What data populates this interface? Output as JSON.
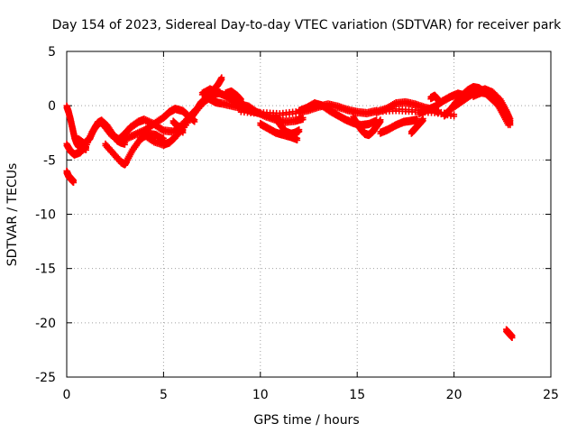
{
  "chart_data": {
    "type": "scatter",
    "title": "Day 154 of 2023, Sidereal Day-to-day VTEC variation (SDTVAR) for receiver park",
    "xlabel": "GPS time / hours",
    "ylabel": "SDTVAR / TECUs",
    "xlim": [
      0,
      25
    ],
    "ylim": [
      -25,
      5
    ],
    "xticks": [
      0,
      5,
      10,
      15,
      20,
      25
    ],
    "yticks": [
      5,
      0,
      -5,
      -10,
      -15,
      -20,
      -25
    ],
    "grid": true,
    "marker": "+",
    "series": [
      {
        "name": "SDTVAR",
        "color": "#ff0000",
        "tracks": [
          {
            "x": [
              0.0,
              0.05,
              0.1,
              0.15,
              0.2,
              0.25,
              0.3,
              0.35
            ],
            "y": [
              -6.0,
              -6.2,
              -6.4,
              -6.5,
              -6.6,
              -6.7,
              -6.8,
              -6.9
            ]
          },
          {
            "x": [
              0.0,
              0.2,
              0.4,
              0.7,
              1.0,
              1.3,
              1.6,
              1.8,
              2.0,
              2.3,
              2.7,
              3.0,
              3.3,
              3.7,
              4.0,
              4.5,
              5.0,
              5.5,
              6.0,
              6.5,
              7.0,
              7.5,
              7.8,
              8.0
            ],
            "y": [
              -3.5,
              -4.1,
              -4.4,
              -4.2,
              -3.6,
              -2.4,
              -1.6,
              -1.4,
              -1.9,
              -2.6,
              -3.0,
              -2.5,
              -1.9,
              -1.4,
              -1.2,
              -1.6,
              -2.2,
              -2.3,
              -1.6,
              -0.6,
              0.3,
              1.4,
              2.0,
              2.6
            ]
          },
          {
            "x": [
              0.0,
              0.1,
              0.2,
              0.3,
              0.4,
              0.5,
              0.6,
              0.8,
              1.0
            ],
            "y": [
              0.0,
              -0.5,
              -1.2,
              -2.0,
              -2.8,
              -3.3,
              -3.6,
              -3.8,
              -3.9
            ]
          },
          {
            "x": [
              0.6,
              0.9,
              1.2,
              1.4,
              1.6,
              1.8,
              2.1,
              2.4,
              2.6,
              2.8,
              3.0
            ],
            "y": [
              -3.0,
              -3.4,
              -2.9,
              -2.1,
              -1.5,
              -1.3,
              -1.8,
              -2.6,
              -3.1,
              -3.3,
              -3.4
            ]
          },
          {
            "x": [
              2.0,
              2.4,
              2.8,
              3.0,
              3.1,
              3.4,
              3.8,
              4.2,
              4.6,
              5.0
            ],
            "y": [
              -3.5,
              -4.3,
              -5.1,
              -5.3,
              -5.0,
              -4.0,
              -3.0,
              -2.5,
              -2.6,
              -3.0
            ]
          },
          {
            "x": [
              3.0,
              3.5,
              4.0,
              4.5,
              5.0,
              5.3,
              5.6,
              6.0,
              6.3,
              6.6
            ],
            "y": [
              -3.0,
              -2.6,
              -2.2,
              -1.6,
              -1.0,
              -0.5,
              -0.2,
              -0.4,
              -0.9,
              -1.3
            ]
          },
          {
            "x": [
              4.0,
              4.5,
              5.0,
              5.3,
              5.6,
              6.0,
              6.5,
              7.0,
              7.5,
              7.9
            ],
            "y": [
              -2.6,
              -3.2,
              -3.5,
              -3.3,
              -2.8,
              -2.0,
              -0.8,
              0.3,
              1.0,
              1.3
            ]
          },
          {
            "x": [
              5.5,
              5.8,
              6.0
            ],
            "y": [
              -1.4,
              -1.9,
              -2.3
            ]
          },
          {
            "x": [
              6.5,
              6.7,
              6.9,
              7.1,
              7.3,
              7.5,
              7.7,
              8.0,
              8.5,
              9.0,
              9.5,
              10.0
            ],
            "y": [
              -0.8,
              -0.3,
              0.3,
              0.6,
              0.8,
              0.6,
              0.4,
              0.3,
              0.1,
              -0.1,
              -0.4,
              -0.6
            ]
          },
          {
            "x": [
              7.0,
              7.4,
              7.8,
              8.2,
              8.6,
              9.0,
              9.4,
              9.8,
              10.3,
              10.8,
              11.3,
              11.8,
              12.2
            ],
            "y": [
              1.2,
              1.6,
              1.3,
              1.0,
              0.6,
              0.2,
              0.0,
              -0.5,
              -0.9,
              -1.2,
              -1.4,
              -1.3,
              -1.1
            ]
          },
          {
            "x": [
              8.2,
              8.5,
              8.8,
              9.0
            ],
            "y": [
              1.2,
              1.4,
              1.0,
              0.6
            ]
          },
          {
            "x": [
              10.0,
              10.4,
              10.8,
              11.2,
              11.6,
              11.9
            ],
            "y": [
              -1.6,
              -2.0,
              -2.4,
              -2.6,
              -2.8,
              -3.0
            ]
          },
          {
            "x": [
              10.8,
              11.0,
              11.3,
              11.6,
              11.8,
              12.0
            ],
            "y": [
              -1.0,
              -1.6,
              -2.3,
              -2.5,
              -2.4,
              -2.2
            ]
          },
          {
            "x": [
              9.0,
              10.0,
              11.0,
              12.0,
              12.5,
              13.0,
              13.5,
              14.0,
              14.5,
              15.0,
              15.5,
              16.0,
              17.0,
              18.0,
              19.0,
              20.0
            ],
            "y": [
              -0.4,
              -0.6,
              -0.7,
              -0.5,
              -0.3,
              0.0,
              0.2,
              0.0,
              -0.3,
              -0.5,
              -0.6,
              -0.4,
              -0.3,
              -0.4,
              -0.5,
              -0.8
            ]
          },
          {
            "x": [
              12.0,
              12.4,
              12.8,
              13.2,
              13.6,
              14.0,
              14.4,
              14.8,
              15.2,
              15.6,
              16.0
            ],
            "y": [
              -0.4,
              -0.1,
              0.3,
              0.1,
              -0.4,
              -0.8,
              -1.2,
              -1.5,
              -1.7,
              -1.6,
              -1.3
            ]
          },
          {
            "x": [
              14.8,
              15.0,
              15.2,
              15.4,
              15.6,
              15.8,
              16.0,
              16.2
            ],
            "y": [
              -1.0,
              -1.6,
              -2.1,
              -2.5,
              -2.6,
              -2.3,
              -1.8,
              -1.3
            ]
          },
          {
            "x": [
              16.0,
              16.5,
              17.0,
              17.5,
              18.0,
              18.5,
              19.0,
              19.2
            ],
            "y": [
              -0.5,
              -0.2,
              0.3,
              0.4,
              0.2,
              -0.1,
              -0.3,
              -0.5
            ]
          },
          {
            "x": [
              16.2,
              16.6,
              17.0,
              17.4,
              17.8,
              18.1
            ],
            "y": [
              -2.4,
              -2.1,
              -1.7,
              -1.4,
              -1.3,
              -1.2
            ]
          },
          {
            "x": [
              17.8,
              18.0,
              18.2,
              18.4
            ],
            "y": [
              -2.4,
              -2.0,
              -1.6,
              -1.2
            ]
          },
          {
            "x": [
              18.2,
              18.6,
              19.0,
              19.4,
              19.8,
              20.2,
              20.6
            ],
            "y": [
              -0.6,
              -0.3,
              0.0,
              0.5,
              0.9,
              1.2,
              1.0
            ]
          },
          {
            "x": [
              18.8,
              19.0,
              19.2
            ],
            "y": [
              0.8,
              1.0,
              0.6
            ]
          },
          {
            "x": [
              19.5,
              19.8,
              20.1,
              20.4,
              20.7,
              21.0,
              21.3,
              21.6,
              21.9,
              22.2,
              22.5,
              22.8,
              22.9
            ],
            "y": [
              -0.8,
              -0.3,
              0.4,
              1.0,
              1.5,
              1.8,
              1.7,
              1.3,
              0.8,
              0.3,
              -0.3,
              -1.0,
              -1.6
            ]
          },
          {
            "x": [
              20.0,
              20.4,
              20.8,
              21.2,
              21.6,
              22.0,
              22.4,
              22.7,
              22.9
            ],
            "y": [
              0.0,
              0.5,
              1.0,
              1.4,
              1.6,
              1.3,
              0.6,
              -0.4,
              -1.2
            ]
          },
          {
            "x": [
              21.0,
              21.4,
              21.8,
              22.2,
              22.5,
              22.8
            ],
            "y": [
              1.0,
              1.3,
              1.2,
              0.4,
              -0.6,
              -1.6
            ]
          },
          {
            "x": [
              22.7,
              22.8,
              22.9,
              23.0
            ],
            "y": [
              -20.6,
              -20.8,
              -21.0,
              -21.2
            ]
          }
        ]
      }
    ]
  }
}
